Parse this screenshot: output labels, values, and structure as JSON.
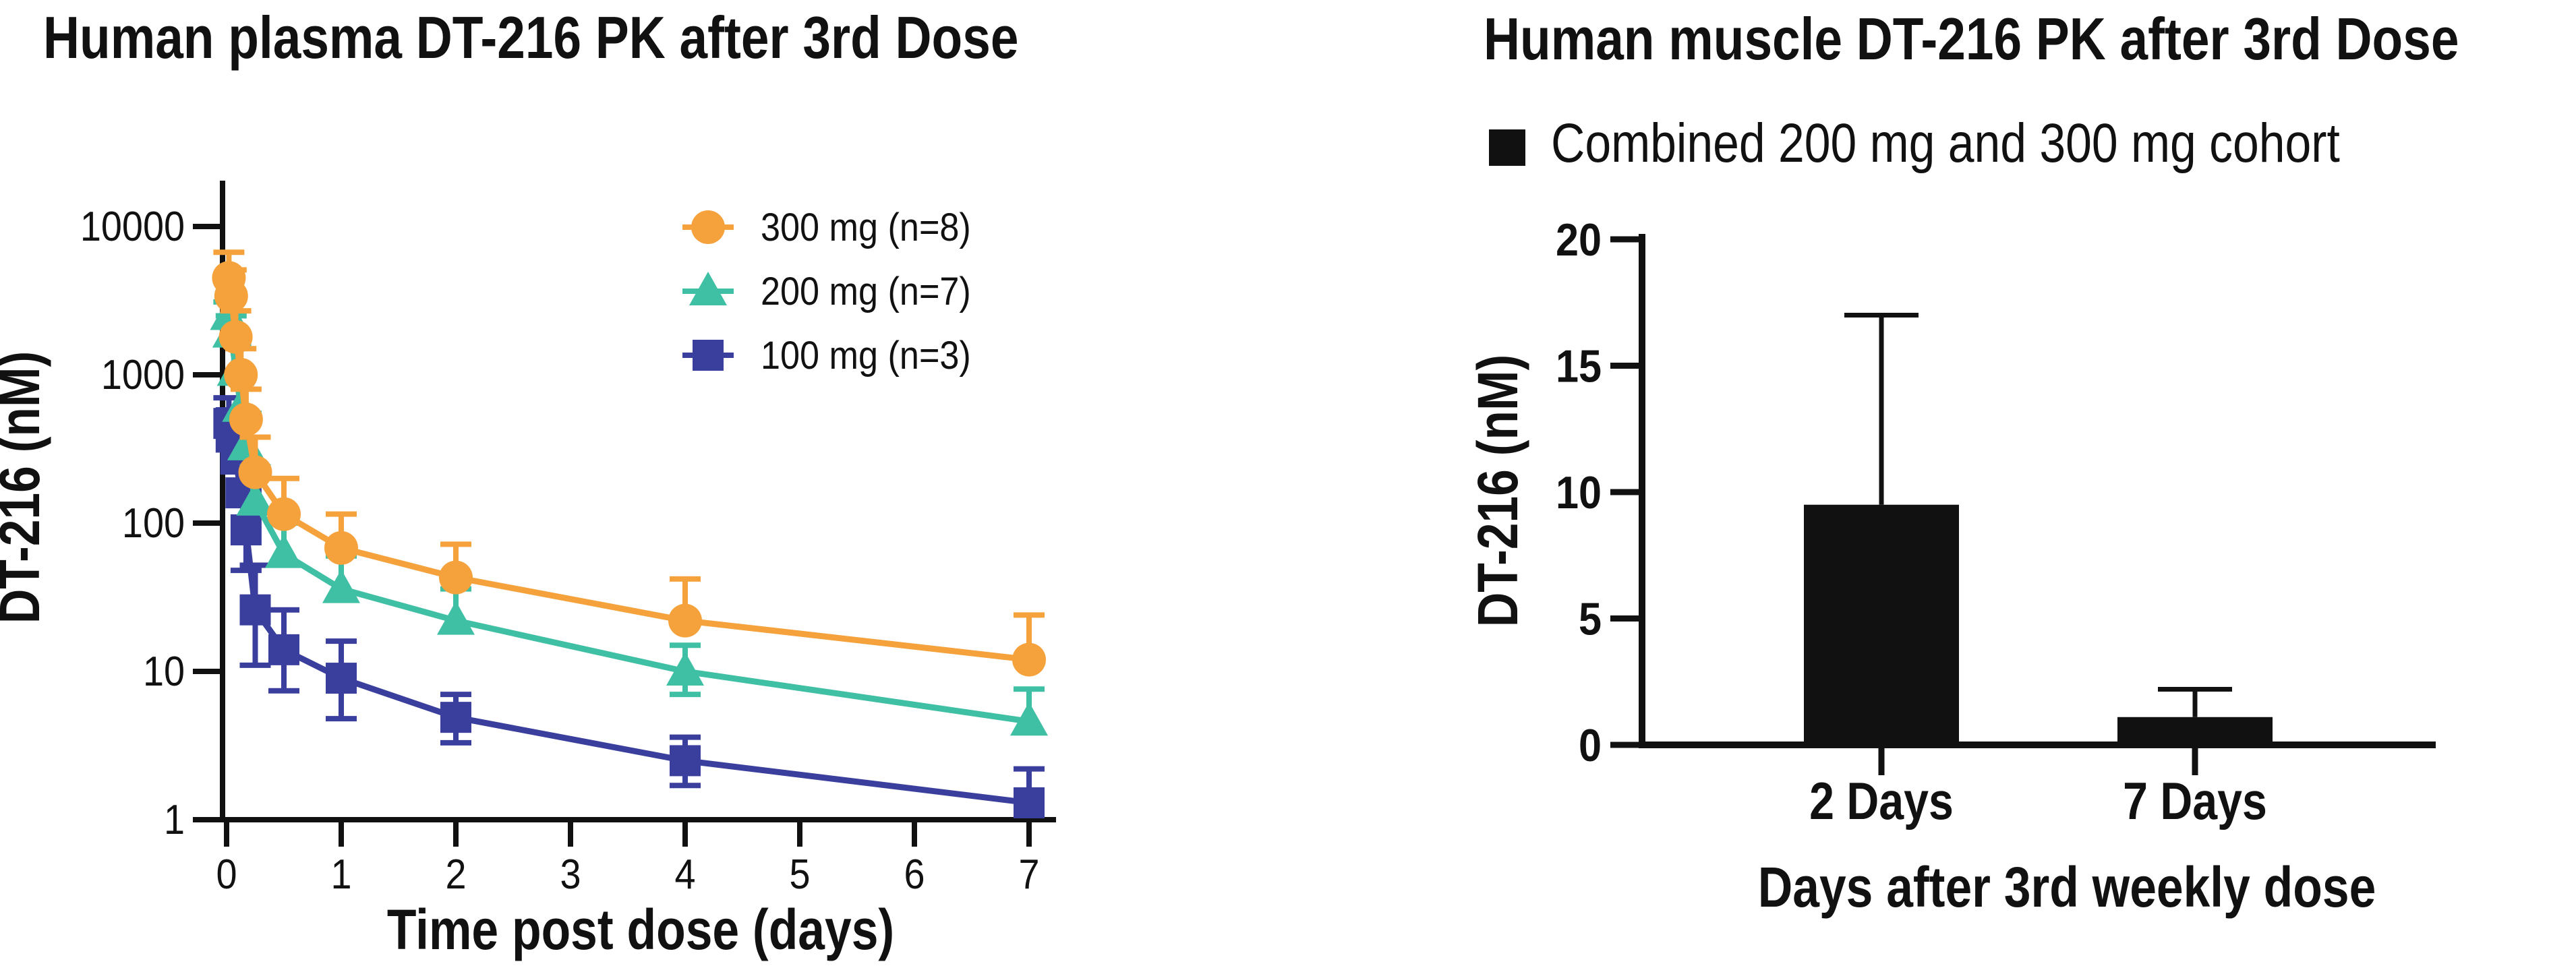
{
  "page": {
    "background": "#FFFFFF",
    "text_color": "#111111"
  },
  "chart_data": [
    {
      "id": "plasma",
      "type": "line",
      "title": "Human plasma DT-216 PK after 3rd Dose",
      "xlabel": "Time post dose (days)",
      "ylabel": "DT-216 (nM)",
      "y_scale": "log10",
      "ylim": [
        1,
        10000
      ],
      "y_ticks": [
        1,
        10,
        100,
        1000,
        10000
      ],
      "y_tick_labels": [
        "1",
        "10",
        "100",
        "1000",
        "10000"
      ],
      "xlim": [
        0,
        7
      ],
      "x_ticks": [
        0,
        1,
        2,
        3,
        4,
        5,
        6,
        7
      ],
      "x_tick_labels": [
        "0",
        "1",
        "2",
        "3",
        "4",
        "5",
        "6",
        "7"
      ],
      "grid": false,
      "legend_position": "inside-top-right",
      "x_days": [
        0.02,
        0.04,
        0.08,
        0.125,
        0.17,
        0.25,
        0.5,
        1,
        2,
        4,
        7
      ],
      "series": [
        {
          "id": "100mg",
          "name": "100 mg (n=3)",
          "color": "#3A3F9E",
          "marker": "square",
          "values": [
            470,
            380,
            270,
            160,
            90,
            26,
            14,
            9,
            4.9,
            2.5,
            1.3
          ],
          "err_hi": [
            700,
            580,
            430,
            270,
            165,
            52,
            26,
            16,
            7,
            3.6,
            2.2
          ],
          "err_lo": [
            null,
            null,
            null,
            null,
            48,
            11,
            7.4,
            4.8,
            3.3,
            1.7,
            null
          ]
        },
        {
          "id": "200mg",
          "name": "200 mg (n=7)",
          "color": "#3FBFA3",
          "marker": "triangle",
          "values": [
            2500,
            1900,
            1050,
            600,
            330,
            140,
            62,
            36,
            22,
            10,
            4.6
          ],
          "err_hi": [
            3100,
            2500,
            1600,
            950,
            550,
            240,
            100,
            60,
            36,
            15,
            7.6
          ],
          "err_lo": [
            null,
            null,
            null,
            null,
            null,
            null,
            null,
            null,
            null,
            7,
            null
          ]
        },
        {
          "id": "300mg",
          "name": "300 mg (n=8)",
          "color": "#F5A23C",
          "marker": "circle",
          "values": [
            4500,
            3400,
            1800,
            1000,
            500,
            220,
            115,
            68,
            43,
            22,
            12
          ],
          "err_hi": [
            6700,
            5100,
            2700,
            1500,
            800,
            380,
            200,
            115,
            72,
            42,
            24
          ],
          "err_lo": [
            null,
            null,
            null,
            null,
            null,
            null,
            null,
            null,
            null,
            null,
            null
          ]
        }
      ],
      "legend_order": [
        "300mg",
        "200mg",
        "100mg"
      ]
    },
    {
      "id": "muscle",
      "type": "bar",
      "title": "Human muscle DT-216 PK after 3rd Dose",
      "legend_label": "Combined 200 mg and 300 mg cohort",
      "xlabel": "Days after 3rd weekly dose",
      "ylabel": "DT-216 (nM)",
      "ylim": [
        0,
        20
      ],
      "y_ticks": [
        0,
        5,
        10,
        15,
        20
      ],
      "y_tick_labels": [
        "0",
        "5",
        "10",
        "15",
        "20"
      ],
      "categories": [
        "2 Days",
        "7 Days"
      ],
      "values": [
        9.5,
        1.1
      ],
      "err_hi": [
        17,
        2.2
      ],
      "bar_color": "#111111",
      "grid": false
    }
  ]
}
